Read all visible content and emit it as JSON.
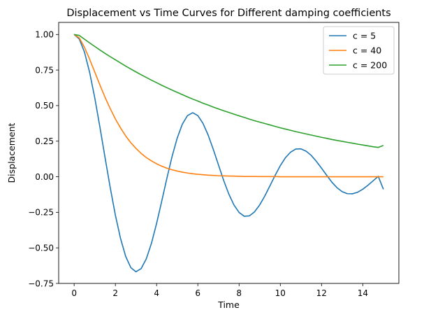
{
  "chart_data": {
    "type": "line",
    "title": "Displacement vs Time Curves for Different damping coefficients",
    "xlabel": "Time",
    "ylabel": "Displacement",
    "xlim": [
      -0.75,
      15.75
    ],
    "ylim": [
      -0.75,
      1.085
    ],
    "xticks": [
      0,
      2,
      4,
      6,
      8,
      10,
      12,
      14
    ],
    "yticks": [
      -0.75,
      -0.5,
      -0.25,
      0.0,
      0.25,
      0.5,
      0.75,
      1.0
    ],
    "ytick_labels": [
      "−0.75",
      "−0.50",
      "−0.25",
      "0.00",
      "0.25",
      "0.50",
      "0.75",
      "1.00"
    ],
    "grid": false,
    "legend_position": "top-right",
    "x": [
      0.0,
      0.25,
      0.5,
      0.75,
      1.0,
      1.25,
      1.5,
      1.75,
      2.0,
      2.25,
      2.5,
      2.75,
      3.0,
      3.25,
      3.5,
      3.75,
      4.0,
      4.25,
      4.5,
      4.75,
      5.0,
      5.25,
      5.5,
      5.75,
      6.0,
      6.25,
      6.5,
      6.75,
      7.0,
      7.25,
      7.5,
      7.75,
      8.0,
      8.25,
      8.5,
      8.75,
      9.0,
      9.25,
      9.5,
      9.75,
      10.0,
      10.25,
      10.5,
      10.75,
      11.0,
      11.25,
      11.5,
      11.75,
      12.0,
      12.25,
      12.5,
      12.75,
      13.0,
      13.25,
      13.5,
      13.75,
      14.0,
      14.25,
      14.5,
      14.75,
      15.0
    ],
    "series": [
      {
        "name": "c = 5",
        "color": "#1f77b4",
        "values": [
          1.0,
          0.968,
          0.877,
          0.735,
          0.555,
          0.349,
          0.134,
          -0.076,
          -0.27,
          -0.434,
          -0.56,
          -0.639,
          -0.668,
          -0.646,
          -0.577,
          -0.468,
          -0.328,
          -0.171,
          -0.01,
          0.142,
          0.272,
          0.37,
          0.43,
          0.45,
          0.43,
          0.375,
          0.293,
          0.192,
          0.083,
          -0.025,
          -0.121,
          -0.198,
          -0.251,
          -0.278,
          -0.275,
          -0.247,
          -0.198,
          -0.135,
          -0.063,
          0.01,
          0.078,
          0.134,
          0.173,
          0.195,
          0.196,
          0.18,
          0.15,
          0.108,
          0.06,
          0.01,
          -0.038,
          -0.077,
          -0.105,
          -0.119,
          -0.12,
          -0.109,
          -0.088,
          -0.06,
          -0.029,
          0.003,
          -0.088
        ]
      },
      {
        "name": "c = 40",
        "color": "#ff7f0e",
        "values": [
          1.0,
          0.976,
          0.91,
          0.827,
          0.736,
          0.645,
          0.558,
          0.479,
          0.406,
          0.343,
          0.287,
          0.239,
          0.199,
          0.164,
          0.135,
          0.111,
          0.091,
          0.074,
          0.06,
          0.049,
          0.04,
          0.032,
          0.026,
          0.021,
          0.017,
          0.014,
          0.011,
          0.009,
          0.007,
          0.006,
          0.005,
          0.004,
          0.003,
          0.002,
          0.002,
          0.002,
          0.001,
          0.001,
          0.001,
          0.001,
          0.0,
          0.0,
          0.0,
          0.0,
          0.0,
          0.0,
          0.0,
          0.0,
          0.0,
          0.0,
          0.0,
          0.0,
          0.0,
          0.0,
          0.0,
          0.0,
          0.0,
          0.0,
          0.0,
          0.0,
          0.0
        ]
      },
      {
        "name": "c = 200",
        "color": "#2ca02c",
        "values": [
          1.0,
          0.993,
          0.967,
          0.941,
          0.916,
          0.891,
          0.867,
          0.844,
          0.822,
          0.8,
          0.778,
          0.757,
          0.737,
          0.717,
          0.698,
          0.679,
          0.661,
          0.643,
          0.626,
          0.609,
          0.593,
          0.577,
          0.561,
          0.546,
          0.532,
          0.517,
          0.504,
          0.49,
          0.477,
          0.464,
          0.452,
          0.44,
          0.428,
          0.417,
          0.405,
          0.394,
          0.384,
          0.374,
          0.364,
          0.354,
          0.344,
          0.335,
          0.326,
          0.317,
          0.309,
          0.301,
          0.293,
          0.285,
          0.277,
          0.27,
          0.262,
          0.255,
          0.249,
          0.242,
          0.236,
          0.229,
          0.223,
          0.217,
          0.211,
          0.206,
          0.22
        ]
      }
    ]
  }
}
